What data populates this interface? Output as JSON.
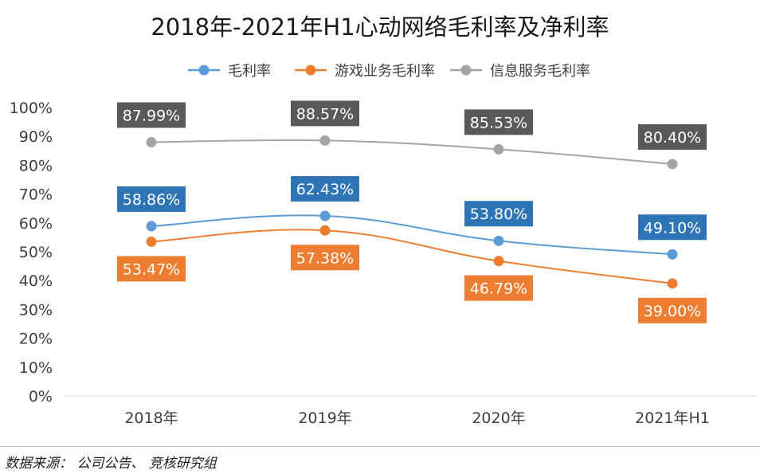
{
  "chart_data": {
    "type": "line",
    "title": "2018年-2021年H1心动网络毛利率及净利率",
    "categories": [
      "2018年",
      "2019年",
      "2020年",
      "2021年H1"
    ],
    "yticks": [
      "0%",
      "10%",
      "20%",
      "30%",
      "40%",
      "50%",
      "60%",
      "70%",
      "80%",
      "90%",
      "100%"
    ],
    "ylim": [
      0,
      100
    ],
    "legend_position": "top-center",
    "grid": false,
    "smooth": true,
    "series": [
      {
        "name": "毛利率",
        "values": [
          58.86,
          62.43,
          53.8,
          49.1
        ],
        "labels": [
          "58.86%",
          "62.43%",
          "53.80%",
          "49.10%"
        ],
        "color": "#5b9bd5",
        "label_bg": "#2e75b6"
      },
      {
        "name": "游戏业务毛利率",
        "values": [
          53.47,
          57.38,
          46.79,
          39.0
        ],
        "labels": [
          "53.47%",
          "57.38%",
          "46.79%",
          "39.00%"
        ],
        "color": "#ed7d31",
        "label_bg": "#ed7d31"
      },
      {
        "name": "信息服务毛利率",
        "values": [
          87.99,
          88.57,
          85.53,
          80.4
        ],
        "labels": [
          "87.99%",
          "88.57%",
          "85.53%",
          "80.40%"
        ],
        "color": "#a5a5a5",
        "label_bg": "#595959"
      }
    ]
  },
  "source_note": "数据来源： 公司公告、 竞核研究组"
}
